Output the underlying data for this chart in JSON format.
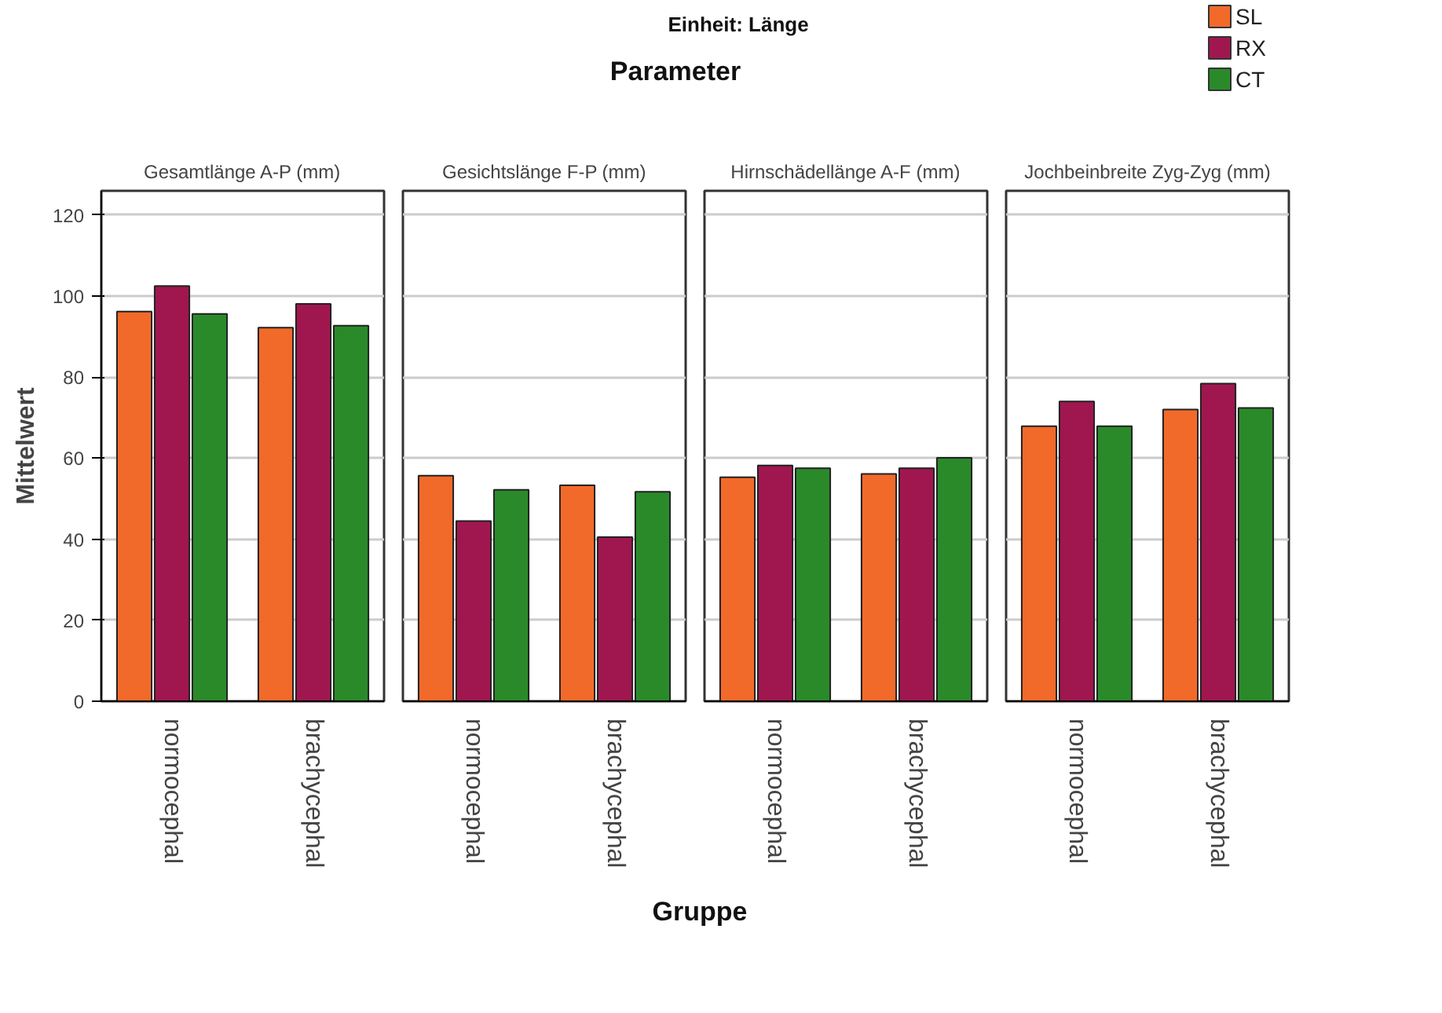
{
  "chart_data": [
    {
      "type": "bar",
      "title": "Gesamtlänge A-P (mm)",
      "categories": [
        "normocephal",
        "brachycephal"
      ],
      "series": [
        {
          "name": "SL",
          "color": "#f26a2a",
          "values": [
            96.2,
            92.2
          ]
        },
        {
          "name": "RX",
          "color": "#a0174f",
          "values": [
            102.5,
            98.1
          ]
        },
        {
          "name": "CT",
          "color": "#2a8a2a",
          "values": [
            95.6,
            92.7
          ]
        }
      ],
      "ylim": [
        0,
        126
      ],
      "yticks": [
        0,
        20,
        40,
        60,
        80,
        100,
        120
      ],
      "grid": "y",
      "legend": "top right",
      "ylabel": "Mittelwert"
    },
    {
      "type": "bar",
      "title": "Gesichtslänge F-P (mm)",
      "categories": [
        "normocephal",
        "brachycephal"
      ],
      "series": [
        {
          "color": "#f26a2a",
          "values": [
            55.7,
            53.3
          ]
        },
        {
          "color": "#a0174f",
          "values": [
            44.5,
            40.5
          ]
        },
        {
          "color": "#2a8a2a",
          "values": [
            52.2,
            51.7
          ]
        }
      ],
      "ylim": [
        0,
        126
      ],
      "yticks": [
        0,
        20,
        40,
        60,
        80,
        100,
        120
      ],
      "grid": "y",
      "tick_labels": "x"
    },
    {
      "type": "bar",
      "title": "Hirnschädellänge A-F (mm)",
      "categories": [
        "normocephal",
        "brachycephal"
      ],
      "series": [
        {
          "color": "#f26a2a",
          "values": [
            55.3,
            56.1
          ]
        },
        {
          "color": "#a0174f",
          "values": [
            58.2,
            57.5
          ]
        },
        {
          "color": "#2a8a2a",
          "values": [
            57.5,
            60.1
          ]
        }
      ],
      "ylim": [
        0,
        126
      ],
      "yticks": [
        0,
        20,
        40,
        60,
        80,
        100,
        120
      ],
      "grid": "y",
      "tick_labels": "x"
    },
    {
      "type": "bar",
      "title": "Jochbeinbreite Zyg-Zyg (mm)",
      "categories": [
        "normocephal",
        "brachycephal"
      ],
      "series": [
        {
          "color": "#f26a2a",
          "values": [
            67.9,
            72.0
          ]
        },
        {
          "color": "#a0174f",
          "values": [
            74.0,
            78.4
          ]
        },
        {
          "color": "#2a8a2a",
          "values": [
            67.9,
            72.4
          ]
        }
      ],
      "ylim": [
        0,
        126
      ],
      "yticks": [
        0,
        20,
        40,
        60,
        80,
        100,
        120
      ],
      "grid": "y",
      "tick_labels": "x"
    },
    {
      "type": "other",
      "subtitle": "Einheit: Länge",
      "title": "Parameter",
      "xlabel": "Gruppe"
    }
  ]
}
